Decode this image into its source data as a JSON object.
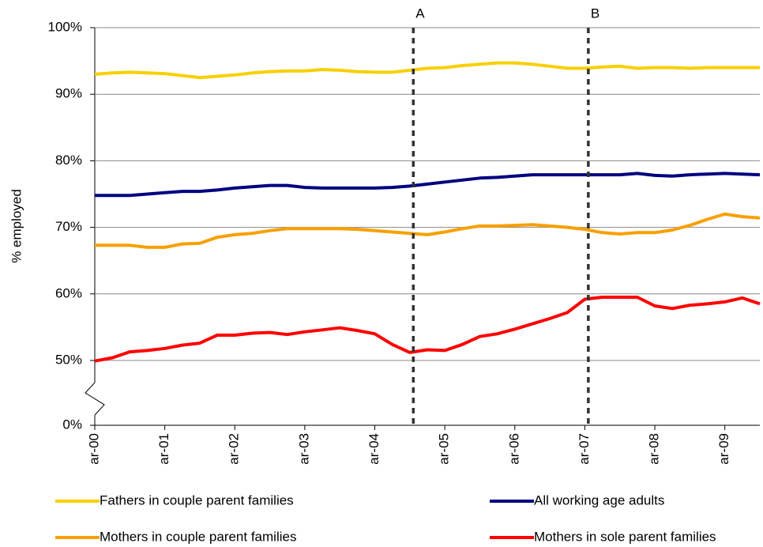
{
  "chart_data": {
    "type": "line",
    "y_label": "% employed",
    "x": [
      0,
      0.25,
      0.5,
      0.75,
      1,
      1.25,
      1.5,
      1.75,
      2,
      2.25,
      2.5,
      2.75,
      3,
      3.25,
      3.5,
      3.75,
      4,
      4.25,
      4.5,
      4.75,
      5,
      5.25,
      5.5,
      5.75,
      6,
      6.25,
      6.5,
      6.75,
      7,
      7.25,
      7.5,
      7.75,
      8,
      8.25,
      8.5,
      8.75,
      9,
      9.25,
      9.5
    ],
    "xlim": [
      0,
      9.5
    ],
    "xticks": [
      {
        "value": 0,
        "label": "ar-00"
      },
      {
        "value": 1,
        "label": "ar-01"
      },
      {
        "value": 2,
        "label": "ar-02"
      },
      {
        "value": 3,
        "label": "ar-03"
      },
      {
        "value": 4,
        "label": "ar-04"
      },
      {
        "value": 5,
        "label": "ar-05"
      },
      {
        "value": 6,
        "label": "ar-06"
      },
      {
        "value": 7,
        "label": "ar-07"
      },
      {
        "value": 8,
        "label": "ar-08"
      },
      {
        "value": 9,
        "label": "ar-09"
      }
    ],
    "ylim": [
      0,
      100
    ],
    "axis_break": [
      0,
      50
    ],
    "yticks": [
      {
        "value": 0,
        "label": "0%"
      },
      {
        "value": 50,
        "label": "50%"
      },
      {
        "value": 60,
        "label": "60%"
      },
      {
        "value": 70,
        "label": "70%"
      },
      {
        "value": 80,
        "label": "80%"
      },
      {
        "value": 90,
        "label": "90%"
      },
      {
        "value": 100,
        "label": "100%"
      }
    ],
    "grid": true,
    "annotations": [
      {
        "label": "A",
        "x": 4.55
      },
      {
        "label": "B",
        "x": 7.05
      }
    ],
    "series": [
      {
        "name": "Fathers in couple parent families",
        "color": "#f7d000",
        "values": [
          93,
          93.2,
          93.3,
          93.2,
          93.1,
          92.8,
          92.5,
          92.7,
          92.9,
          93.2,
          93.4,
          93.5,
          93.5,
          93.7,
          93.6,
          93.4,
          93.3,
          93.3,
          93.6,
          93.9,
          94,
          94.3,
          94.5,
          94.7,
          94.7,
          94.5,
          94.2,
          93.9,
          93.9,
          94.1,
          94.2,
          93.9,
          94,
          94,
          93.9,
          94,
          94,
          94,
          94
        ]
      },
      {
        "name": "All working age adults",
        "color": "#000080",
        "values": [
          74.8,
          74.8,
          74.8,
          75,
          75.2,
          75.4,
          75.4,
          75.6,
          75.9,
          76.1,
          76.3,
          76.3,
          76,
          75.9,
          75.9,
          75.9,
          75.9,
          76,
          76.2,
          76.5,
          76.8,
          77.1,
          77.4,
          77.5,
          77.7,
          77.9,
          77.9,
          77.9,
          77.9,
          77.9,
          77.9,
          78.1,
          77.8,
          77.7,
          77.9,
          78,
          78.1,
          78,
          77.9
        ]
      },
      {
        "name": "Mothers in couple parent families",
        "color": "#f8a000",
        "values": [
          67.3,
          67.3,
          67.3,
          67,
          67,
          67.5,
          67.6,
          68.5,
          68.9,
          69.1,
          69.5,
          69.8,
          69.8,
          69.8,
          69.8,
          69.7,
          69.5,
          69.3,
          69.1,
          68.9,
          69.3,
          69.8,
          70.2,
          70.2,
          70.3,
          70.4,
          70.2,
          70,
          69.7,
          69.2,
          69,
          69.2,
          69.2,
          69.6,
          70.3,
          71.2,
          72,
          71.6,
          71.4
        ]
      },
      {
        "name": "Mothers in sole parent families",
        "color": "#ff0000",
        "values": [
          49.6,
          50.4,
          51.3,
          51.5,
          51.8,
          52.3,
          52.6,
          53.8,
          53.8,
          54.1,
          54.2,
          53.9,
          54.3,
          54.6,
          54.9,
          54.5,
          54,
          52.4,
          51.2,
          51.6,
          51.5,
          52.4,
          53.6,
          54,
          54.7,
          55.5,
          56.3,
          57.2,
          59.2,
          59.5,
          59.5,
          59.5,
          58.2,
          57.8,
          58.3,
          58.5,
          58.8,
          59.4,
          58.5
        ]
      }
    ]
  }
}
